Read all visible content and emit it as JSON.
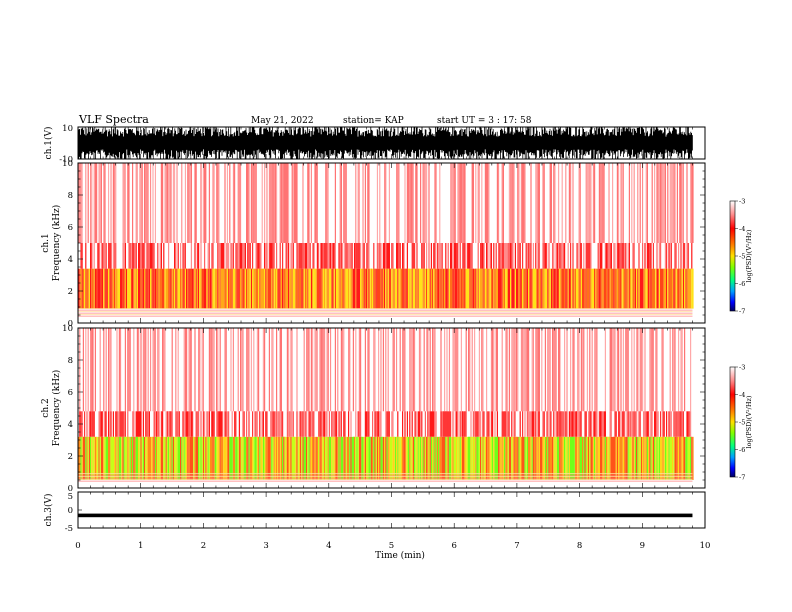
{
  "header": {
    "title": "VLF Spectra",
    "date": "May 21, 2022",
    "station": "station= KAP",
    "start": "start  UT  =   3  : 17: 58"
  },
  "chart_data": [
    {
      "id": "ch1-waveform",
      "type": "line",
      "title": "",
      "ylabel": "ch.1(V)",
      "ylim": [
        -10,
        10
      ],
      "yticks": [
        "10",
        "-10"
      ],
      "xlim": [
        0,
        10
      ],
      "data_extent_min": 9.8,
      "description_values": {
        "typical_amplitude": [
          -10,
          10
        ]
      }
    },
    {
      "id": "ch1-spectrogram",
      "type": "heatmap",
      "ylabel": "ch.1 Frequency (kHz)",
      "ylabel_line1": "ch.1",
      "ylabel_line2": "Frequency  (kHz)",
      "ylim": [
        0,
        10
      ],
      "yticks": [
        "0",
        "2",
        "4",
        "6",
        "8",
        "10"
      ],
      "xlim": [
        0,
        10
      ],
      "data_extent_min": 9.8,
      "bands": [
        {
          "from_khz": 0.9,
          "to_khz": 3.4,
          "log_psd": -4.2
        },
        {
          "from_khz": 3.4,
          "to_khz": 5.0,
          "log_psd": -3.7
        },
        {
          "from_khz": 5.0,
          "to_khz": 10.0,
          "log_psd": -3.4
        }
      ],
      "colorbar": {
        "label": "log(PSD)(V²/Hz)",
        "range": [
          -7,
          -3
        ],
        "ticks": [
          "-3",
          "-4",
          "-5",
          "-6",
          "-7"
        ]
      }
    },
    {
      "id": "ch2-spectrogram",
      "type": "heatmap",
      "ylabel": "ch.2 Frequency (kHz)",
      "ylabel_line1": "ch.2",
      "ylabel_line2": "Frequency  (kHz)",
      "ylim": [
        0,
        10
      ],
      "yticks": [
        "0",
        "2",
        "4",
        "6",
        "8",
        "10"
      ],
      "xlim": [
        0,
        10
      ],
      "data_extent_min": 9.8,
      "bands": [
        {
          "from_khz": 0.5,
          "to_khz": 3.2,
          "log_psd": -4.6
        },
        {
          "from_khz": 3.2,
          "to_khz": 4.8,
          "log_psd": -3.7
        },
        {
          "from_khz": 4.8,
          "to_khz": 10.0,
          "log_psd": -3.4
        }
      ],
      "colorbar": {
        "label": "log(PSD)(V²/Hz)",
        "range": [
          -7,
          -3
        ],
        "ticks": [
          "-3",
          "-4",
          "-5",
          "-6",
          "-7"
        ]
      }
    },
    {
      "id": "ch3-waveform",
      "type": "line",
      "ylabel": "ch.3(V)",
      "ylim": [
        -5,
        5
      ],
      "yticks": [
        "5",
        "0",
        "-5"
      ],
      "xlim": [
        0,
        10
      ],
      "xlabel": "Time  (min)",
      "xticks": [
        "0",
        "1",
        "2",
        "3",
        "4",
        "5",
        "6",
        "7",
        "8",
        "9",
        "10"
      ],
      "data_extent_min": 9.8,
      "description_values": {
        "typical_level": -1.5,
        "amplitude": 0.5
      }
    }
  ],
  "colors": {
    "frame": "#000000",
    "cmap": [
      "#000080",
      "#0000ff",
      "#00c0ff",
      "#00ff60",
      "#c0ff00",
      "#ffd000",
      "#ff6000",
      "#ff0000",
      "#ffffff"
    ]
  }
}
